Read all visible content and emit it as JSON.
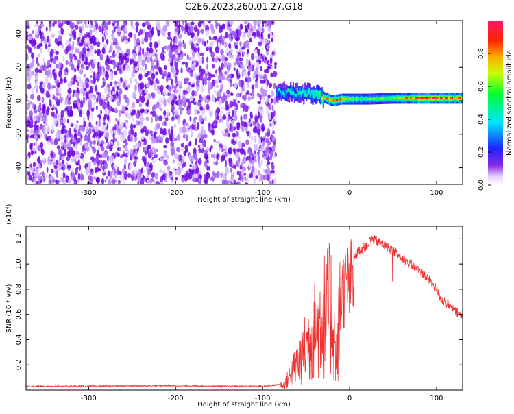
{
  "title": "C2E6.2023.260.01.27.G18",
  "colors": {
    "snr_line": "#ee3333",
    "speckle": "#8a2be2",
    "frame": "#000000"
  },
  "colorbar": {
    "label": "Normalized spectral amplitude",
    "ticks": [
      "0.0",
      "0.2",
      "0.4",
      "0.6",
      "0.8"
    ],
    "tick_values": [
      0.0,
      0.2,
      0.4,
      0.6,
      0.8
    ],
    "range": [
      0,
      1
    ]
  },
  "chart_data": [
    {
      "type": "heatmap",
      "name": "spectrogram",
      "xlabel": "Height of straight line (km)",
      "ylabel": "Frequency (Hz)",
      "xlim": [
        -372,
        130
      ],
      "ylim": [
        -50,
        48
      ],
      "x_ticks": [
        "-300",
        "-200",
        "-100",
        "0",
        "100"
      ],
      "x_tick_values": [
        -300,
        -200,
        -100,
        0,
        100
      ],
      "y_ticks": [
        "-40",
        "-20",
        "0",
        "20",
        "40"
      ],
      "y_tick_values": [
        -40,
        -20,
        0,
        20,
        40
      ],
      "noise_region_x": [
        -372,
        -85
      ],
      "signal_line": {
        "x": [
          -85,
          -70,
          -55,
          -40,
          -30,
          -20,
          -10,
          0,
          20,
          50,
          80,
          100,
          130
        ],
        "freq": [
          5,
          5,
          4.5,
          4,
          2,
          0,
          1,
          1,
          1,
          1.5,
          1.5,
          1.5,
          1.5
        ],
        "amplitude": [
          0.35,
          0.4,
          0.45,
          0.5,
          0.7,
          0.85,
          0.8,
          0.6,
          0.55,
          0.6,
          0.9,
          0.85,
          0.8
        ]
      }
    },
    {
      "type": "line",
      "name": "snr",
      "xlabel": "Height of straight line (km)",
      "ylabel": "SNR (10 * v/v)",
      "y_scale_label": "(x10⁴)",
      "xlim": [
        -372,
        130
      ],
      "ylim": [
        0,
        1.3
      ],
      "x_ticks": [
        "-300",
        "-200",
        "-100",
        "0",
        "100"
      ],
      "x_tick_values": [
        -300,
        -200,
        -100,
        0,
        100
      ],
      "y_ticks": [
        "0.2",
        "0.4",
        "0.6",
        "0.8",
        "1.0",
        "1.2"
      ],
      "y_tick_values": [
        0.2,
        0.4,
        0.6,
        0.8,
        1.0,
        1.2
      ],
      "series": [
        {
          "x": [
            -372,
            -300,
            -220,
            -150,
            -95,
            -75,
            -60,
            -50,
            -40,
            -30,
            -20,
            -15,
            -10,
            0,
            10,
            20,
            25,
            40,
            55,
            70,
            85,
            95,
            100,
            105,
            110,
            120,
            130
          ],
          "y": [
            0.03,
            0.03,
            0.035,
            0.03,
            0.03,
            0.05,
            0.25,
            0.4,
            0.55,
            0.7,
            0.75,
            0.2,
            0.9,
            1.0,
            1.1,
            1.15,
            1.2,
            1.15,
            1.08,
            1.0,
            0.92,
            0.85,
            0.8,
            0.72,
            0.7,
            0.63,
            0.58
          ]
        }
      ]
    }
  ]
}
